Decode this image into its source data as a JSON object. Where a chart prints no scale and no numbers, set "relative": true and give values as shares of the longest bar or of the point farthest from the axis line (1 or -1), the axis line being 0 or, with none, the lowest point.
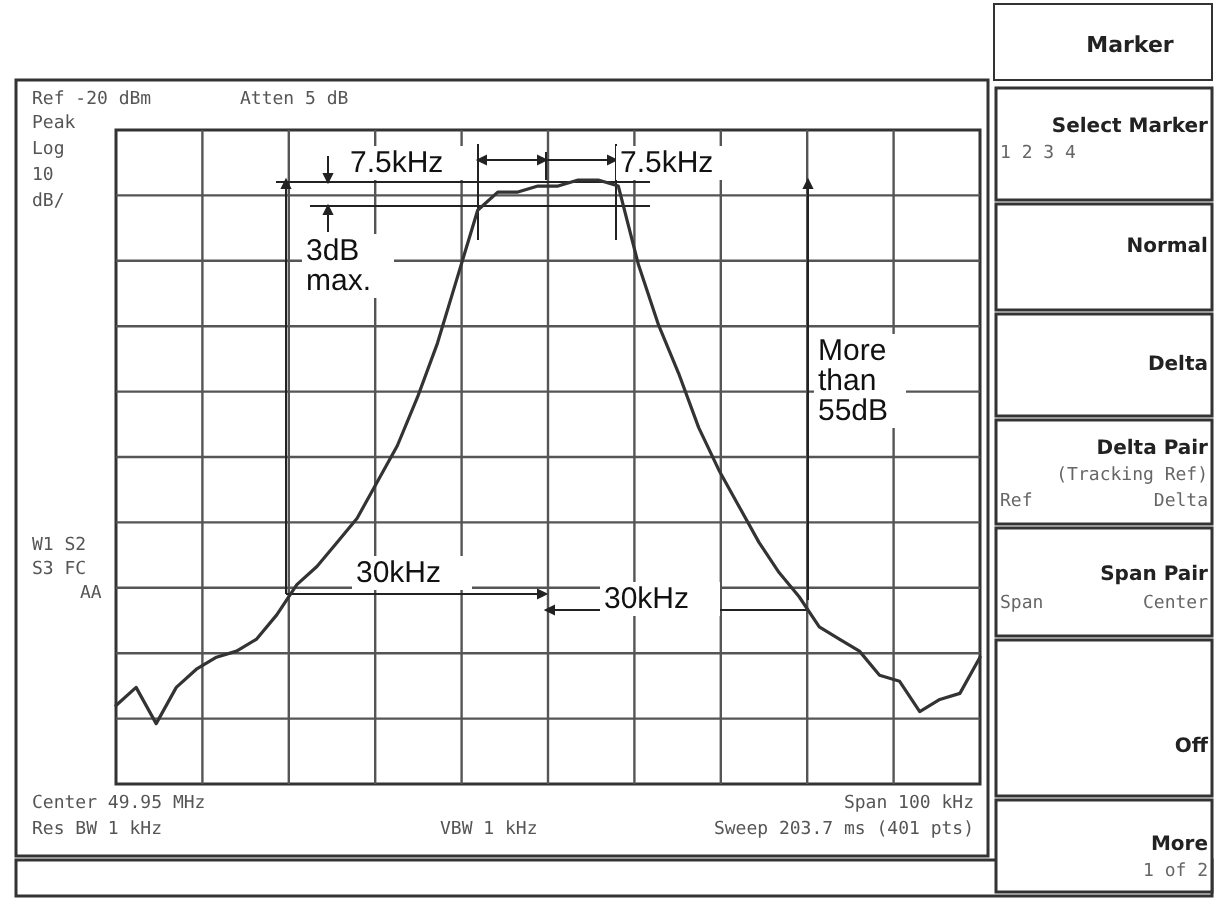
{
  "chart_data": {
    "type": "line",
    "title": "Marker",
    "relative": true,
    "grid": true,
    "categories": [
      null,
      null,
      null,
      null,
      null,
      null,
      null,
      null,
      null,
      null,
      null,
      null,
      null,
      null,
      null,
      null,
      null,
      null,
      null,
      null,
      null,
      null,
      null,
      null,
      null,
      null,
      null,
      null,
      null,
      null,
      null,
      null,
      null,
      null,
      null,
      null,
      null,
      null,
      null,
      null,
      null,
      null,
      null,
      null
    ],
    "series": [
      {
        "color": "#333333",
        "values": [
          0.13,
          0.16,
          0.1,
          0.16,
          0.19,
          0.21,
          0.22,
          0.24,
          0.28,
          0.33,
          0.36,
          0.4,
          0.44,
          0.5,
          0.56,
          0.64,
          0.73,
          0.84,
          0.95,
          0.98,
          0.98,
          0.99,
          0.99,
          1,
          1,
          0.99,
          0.86,
          0.76,
          0.68,
          0.59,
          0.52,
          0.46,
          0.4,
          0.35,
          0.31,
          0.26,
          0.24,
          0.22,
          0.18,
          0.17,
          0.12,
          0.14,
          0.15,
          0.21
        ]
      }
    ],
    "annotations": [
      "Ref -20 dBm",
      "Atten 5 dB",
      "Peak",
      "Log",
      "10",
      "dB/",
      "W1 S2",
      "S3 FC",
      "AA",
      "Center 49.95 MHz",
      "Res BW 1 kHz",
      "VBW 1 kHz",
      "Span 100 kHz",
      "Sweep 203.7 ms (401 pts)",
      "7.5kHz",
      "7.5kHz",
      "3dB max.",
      "More than 55dB",
      "30kHz",
      "30kHz",
      "Select Marker",
      "1 2 3 4",
      "Normal",
      "Delta",
      "Delta Pair",
      "(Tracking Ref)",
      "Ref",
      "Delta",
      "Span Pair",
      "Span",
      "Center",
      "Off",
      "More",
      "1 of 2"
    ]
  }
}
